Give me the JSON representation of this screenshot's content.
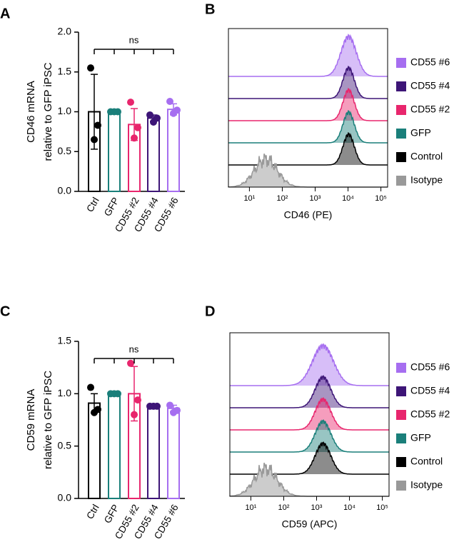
{
  "chart_data": [
    {
      "type": "bar",
      "panel_label": "A",
      "categories": [
        "Ctrl",
        "GFP",
        "CD55 #2",
        "CD55 #4",
        "CD55 #6"
      ],
      "colors": [
        "#000000",
        "#1a7f7a",
        "#e8266d",
        "#3d1577",
        "#a66ef0"
      ],
      "values": [
        1.0,
        1.0,
        0.84,
        0.92,
        1.03
      ],
      "errors": [
        0.47,
        0.0,
        0.2,
        0.04,
        0.07
      ],
      "points": [
        [
          1.55,
          0.83,
          0.65
        ],
        [
          1.0,
          1.0,
          1.0
        ],
        [
          1.12,
          0.8,
          0.67
        ],
        [
          0.96,
          0.92,
          0.87
        ],
        [
          1.13,
          1.02,
          0.98
        ]
      ],
      "ylabel": [
        "CD46 mRNA",
        "relative to GFP iPSC"
      ],
      "ylim": [
        0,
        2
      ],
      "yticks": [
        {
          "value": 0,
          "label": "0.0"
        },
        0.5,
        {
          "value": 1,
          "label": "1.0"
        },
        1.5,
        {
          "value": 2,
          "label": "2.0"
        }
      ],
      "annotation": "ns"
    },
    {
      "type": "histogram",
      "panel_label": "B",
      "xlabel": "CD46 (PE)",
      "log_x": true,
      "xlim": [
        2.3,
        160000
      ],
      "xticks": [
        {
          "value": 10,
          "label": "10¹"
        },
        {
          "value": 100,
          "label": "10²"
        },
        {
          "value": 1000,
          "label": "10³"
        },
        {
          "value": 10000,
          "label": "10⁴"
        },
        {
          "value": 100000,
          "label": "10⁵"
        }
      ],
      "series": [
        {
          "name": "CD55 #6",
          "color": "#a66ef0"
        },
        {
          "name": "CD55 #4",
          "color": "#3d1577"
        },
        {
          "name": "CD55 #2",
          "color": "#e8266d"
        },
        {
          "name": "GFP",
          "color": "#1a7f7a"
        },
        {
          "name": "Control",
          "color": "#000000"
        },
        {
          "name": "Isotype",
          "color": "#999999"
        }
      ]
    },
    {
      "type": "bar",
      "panel_label": "C",
      "categories": [
        "Ctrl",
        "GFP",
        "CD55 #2",
        "CD55 #4",
        "CD55 #6"
      ],
      "colors": [
        "#000000",
        "#1a7f7a",
        "#e8266d",
        "#3d1577",
        "#a66ef0"
      ],
      "values": [
        0.91,
        1.0,
        1.0,
        0.88,
        0.86
      ],
      "errors": [
        0.09,
        0.0,
        0.26,
        0.01,
        0.03
      ],
      "points": [
        [
          1.06,
          0.85,
          0.82
        ],
        [
          1.0,
          1.0,
          1.0
        ],
        [
          1.29,
          0.94,
          0.8
        ],
        [
          0.88,
          0.88,
          0.88
        ],
        [
          0.89,
          0.84,
          0.82
        ]
      ],
      "ylabel": [
        "CD59 mRNA",
        "relative to GFP iPSC"
      ],
      "ylim": [
        0,
        1.5
      ],
      "yticks": [
        {
          "value": 0,
          "label": "0.0"
        },
        0.5,
        {
          "value": 1,
          "label": "1.0"
        },
        1.5
      ],
      "annotation": "ns"
    },
    {
      "type": "histogram",
      "panel_label": "D",
      "xlabel": "CD59 (APC)",
      "log_x": true,
      "xlim": [
        2.3,
        160000
      ],
      "xticks": [
        {
          "value": 10,
          "label": "10¹"
        },
        {
          "value": 100,
          "label": "10²"
        },
        {
          "value": 1000,
          "label": "10³"
        },
        {
          "value": 10000,
          "label": "10⁴"
        },
        {
          "value": 100000,
          "label": "10⁵"
        }
      ],
      "series": [
        {
          "name": "CD55 #6",
          "color": "#a66ef0"
        },
        {
          "name": "CD55 #4",
          "color": "#3d1577"
        },
        {
          "name": "CD55 #2",
          "color": "#e8266d"
        },
        {
          "name": "GFP",
          "color": "#1a7f7a"
        },
        {
          "name": "Control",
          "color": "#000000"
        },
        {
          "name": "Isotype",
          "color": "#999999"
        }
      ]
    }
  ]
}
